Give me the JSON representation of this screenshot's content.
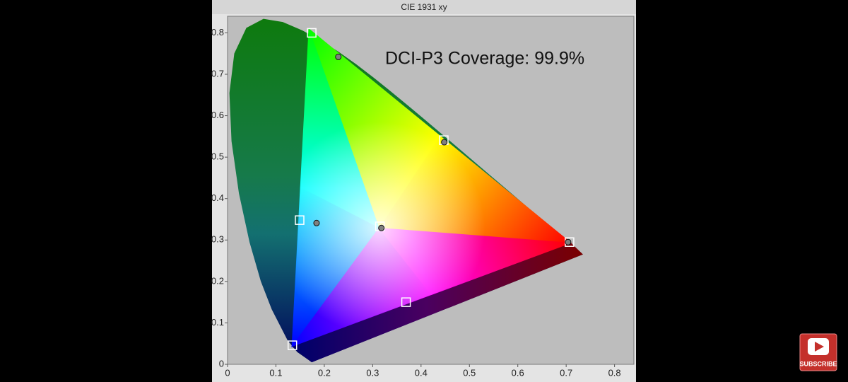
{
  "chart_data": {
    "type": "scatter",
    "title": "CIE 1931 xy",
    "annotation": "DCI-P3 Coverage: 99.9%",
    "xlim": [
      0,
      0.84
    ],
    "ylim": [
      0,
      0.84
    ],
    "xticks": [
      0,
      0.1,
      0.2,
      0.3,
      0.4,
      0.5,
      0.6,
      0.7,
      0.8
    ],
    "yticks": [
      0,
      0.1,
      0.2,
      0.3,
      0.4,
      0.5,
      0.6,
      0.7,
      0.8
    ],
    "series": [
      {
        "marker": "square",
        "color": "#ffffff",
        "x": [
          0.707,
          0.174,
          0.134,
          0.447,
          0.149,
          0.369,
          0.315
        ],
        "y": [
          0.295,
          0.8,
          0.046,
          0.541,
          0.348,
          0.15,
          0.333
        ]
      },
      {
        "marker": "circle",
        "color": "#808080",
        "x": [
          0.704,
          0.229,
          0.448,
          0.184,
          0.318
        ],
        "y": [
          0.295,
          0.742,
          0.536,
          0.341,
          0.329
        ]
      }
    ]
  },
  "watermark": "SUBSCRIBE"
}
